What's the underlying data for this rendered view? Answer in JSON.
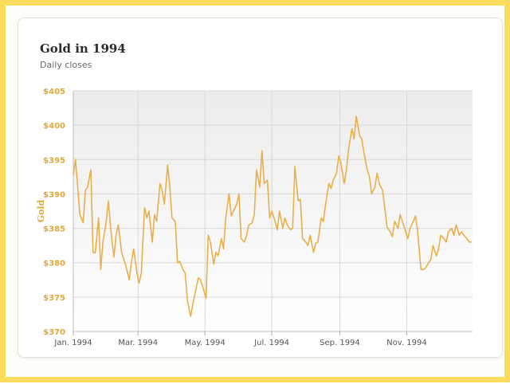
{
  "chart_data": {
    "type": "line",
    "title": "Gold in 1994",
    "subtitle": "Daily closes",
    "xlabel": "",
    "ylabel": "Gold",
    "ylim": [
      370,
      405
    ],
    "xlim": [
      "1994-01-01",
      "1994-12-31"
    ],
    "y_ticks": [
      "$370",
      "$375",
      "$380",
      "$385",
      "$390",
      "$395",
      "$400",
      "$405"
    ],
    "x_ticks": [
      {
        "date": "1994-01-01",
        "label": "Jan. 1994"
      },
      {
        "date": "1994-03-01",
        "label": "Mar. 1994"
      },
      {
        "date": "1994-05-01",
        "label": "May. 1994"
      },
      {
        "date": "1994-07-01",
        "label": "Jul. 1994"
      },
      {
        "date": "1994-09-01",
        "label": "Sep. 1994"
      },
      {
        "date": "1994-11-01",
        "label": "Nov. 1994"
      }
    ],
    "grid": true,
    "line_color": "#e9b04a",
    "series": [
      {
        "points": [
          [
            "1994-01-01",
            392.8
          ],
          [
            "1994-01-03",
            395.0
          ],
          [
            "1994-01-05",
            391.0
          ],
          [
            "1994-01-07",
            387.0
          ],
          [
            "1994-01-10",
            385.8
          ],
          [
            "1994-01-12",
            390.5
          ],
          [
            "1994-01-14",
            391.0
          ],
          [
            "1994-01-17",
            393.5
          ],
          [
            "1994-01-19",
            381.5
          ],
          [
            "1994-01-21",
            381.4
          ],
          [
            "1994-01-24",
            386.5
          ],
          [
            "1994-01-26",
            379.0
          ],
          [
            "1994-01-28",
            383.0
          ],
          [
            "1994-01-31",
            386.0
          ],
          [
            "1994-02-02",
            389.0
          ],
          [
            "1994-02-04",
            385.0
          ],
          [
            "1994-02-07",
            380.8
          ],
          [
            "1994-02-09",
            384.0
          ],
          [
            "1994-02-11",
            385.5
          ],
          [
            "1994-02-14",
            381.5
          ],
          [
            "1994-02-16",
            380.5
          ],
          [
            "1994-02-18",
            379.5
          ],
          [
            "1994-02-21",
            377.5
          ],
          [
            "1994-02-23",
            380.0
          ],
          [
            "1994-02-25",
            382.0
          ],
          [
            "1994-02-28",
            378.5
          ],
          [
            "1994-03-02",
            377.0
          ],
          [
            "1994-03-04",
            378.5
          ],
          [
            "1994-03-07",
            388.0
          ],
          [
            "1994-03-09",
            386.5
          ],
          [
            "1994-03-11",
            387.5
          ],
          [
            "1994-03-14",
            383.0
          ],
          [
            "1994-03-16",
            387.0
          ],
          [
            "1994-03-18",
            386.0
          ],
          [
            "1994-03-21",
            391.5
          ],
          [
            "1994-03-23",
            390.5
          ],
          [
            "1994-03-25",
            388.5
          ],
          [
            "1994-03-28",
            394.2
          ],
          [
            "1994-03-30",
            391.0
          ],
          [
            "1994-04-01",
            386.5
          ],
          [
            "1994-04-04",
            386.0
          ],
          [
            "1994-04-06",
            380.0
          ],
          [
            "1994-04-08",
            380.2
          ],
          [
            "1994-04-11",
            379.0
          ],
          [
            "1994-04-13",
            378.5
          ],
          [
            "1994-04-15",
            374.5
          ],
          [
            "1994-04-18",
            372.2
          ],
          [
            "1994-04-20",
            374.0
          ],
          [
            "1994-04-22",
            375.5
          ],
          [
            "1994-04-25",
            377.8
          ],
          [
            "1994-04-27",
            377.5
          ],
          [
            "1994-04-29",
            376.5
          ],
          [
            "1994-05-02",
            374.8
          ],
          [
            "1994-05-04",
            384.0
          ],
          [
            "1994-05-06",
            383.0
          ],
          [
            "1994-05-09",
            379.8
          ],
          [
            "1994-05-11",
            381.5
          ],
          [
            "1994-05-13",
            381.0
          ],
          [
            "1994-05-16",
            383.5
          ],
          [
            "1994-05-18",
            382.0
          ],
          [
            "1994-05-20",
            386.5
          ],
          [
            "1994-05-23",
            390.0
          ],
          [
            "1994-05-25",
            386.8
          ],
          [
            "1994-05-27",
            387.5
          ],
          [
            "1994-05-30",
            388.5
          ],
          [
            "1994-06-01",
            390.0
          ],
          [
            "1994-06-03",
            383.5
          ],
          [
            "1994-06-06",
            383.0
          ],
          [
            "1994-06-08",
            384.0
          ],
          [
            "1994-06-10",
            385.5
          ],
          [
            "1994-06-13",
            385.8
          ],
          [
            "1994-06-15",
            387.0
          ],
          [
            "1994-06-17",
            393.5
          ],
          [
            "1994-06-20",
            391.0
          ],
          [
            "1994-06-22",
            396.3
          ],
          [
            "1994-06-24",
            391.5
          ],
          [
            "1994-06-27",
            392.0
          ],
          [
            "1994-06-29",
            386.5
          ],
          [
            "1994-07-01",
            387.5
          ],
          [
            "1994-07-04",
            386.0
          ],
          [
            "1994-07-06",
            384.8
          ],
          [
            "1994-07-08",
            387.5
          ],
          [
            "1994-07-11",
            385.0
          ],
          [
            "1994-07-13",
            386.5
          ],
          [
            "1994-07-15",
            385.5
          ],
          [
            "1994-07-18",
            384.8
          ],
          [
            "1994-07-20",
            385.0
          ],
          [
            "1994-07-22",
            394.0
          ],
          [
            "1994-07-25",
            389.0
          ],
          [
            "1994-07-27",
            389.2
          ],
          [
            "1994-07-29",
            383.5
          ],
          [
            "1994-08-01",
            383.0
          ],
          [
            "1994-08-03",
            382.5
          ],
          [
            "1994-08-05",
            384.0
          ],
          [
            "1994-08-08",
            381.5
          ],
          [
            "1994-08-10",
            382.8
          ],
          [
            "1994-08-12",
            383.0
          ],
          [
            "1994-08-15",
            386.5
          ],
          [
            "1994-08-17",
            386.0
          ],
          [
            "1994-08-19",
            388.5
          ],
          [
            "1994-08-22",
            391.5
          ],
          [
            "1994-08-24",
            390.8
          ],
          [
            "1994-08-26",
            392.0
          ],
          [
            "1994-08-29",
            393.0
          ],
          [
            "1994-08-31",
            395.5
          ],
          [
            "1994-09-02",
            394.5
          ],
          [
            "1994-09-05",
            391.5
          ],
          [
            "1994-09-07",
            393.5
          ],
          [
            "1994-09-09",
            396.5
          ],
          [
            "1994-09-12",
            399.5
          ],
          [
            "1994-09-14",
            398.0
          ],
          [
            "1994-09-16",
            401.3
          ],
          [
            "1994-09-19",
            398.5
          ],
          [
            "1994-09-21",
            398.0
          ],
          [
            "1994-09-23",
            396.0
          ],
          [
            "1994-09-26",
            393.5
          ],
          [
            "1994-09-28",
            392.5
          ],
          [
            "1994-09-30",
            390.0
          ],
          [
            "1994-10-03",
            391.0
          ],
          [
            "1994-10-05",
            393.0
          ],
          [
            "1994-10-07",
            391.5
          ],
          [
            "1994-10-10",
            390.5
          ],
          [
            "1994-10-12",
            388.0
          ],
          [
            "1994-10-14",
            385.2
          ],
          [
            "1994-10-17",
            384.5
          ],
          [
            "1994-10-19",
            383.8
          ],
          [
            "1994-10-21",
            386.0
          ],
          [
            "1994-10-24",
            385.0
          ],
          [
            "1994-10-26",
            387.0
          ],
          [
            "1994-10-28",
            386.0
          ],
          [
            "1994-10-31",
            384.5
          ],
          [
            "1994-11-02",
            383.5
          ],
          [
            "1994-11-04",
            385.0
          ],
          [
            "1994-11-07",
            386.0
          ],
          [
            "1994-11-09",
            386.8
          ],
          [
            "1994-11-11",
            384.5
          ],
          [
            "1994-11-14",
            379.0
          ],
          [
            "1994-11-16",
            379.0
          ],
          [
            "1994-11-18",
            379.2
          ],
          [
            "1994-11-21",
            380.0
          ],
          [
            "1994-11-23",
            380.5
          ],
          [
            "1994-11-25",
            382.5
          ],
          [
            "1994-11-28",
            381.0
          ],
          [
            "1994-11-30",
            382.0
          ],
          [
            "1994-12-02",
            384.0
          ],
          [
            "1994-12-05",
            383.5
          ],
          [
            "1994-12-07",
            383.0
          ],
          [
            "1994-12-09",
            384.5
          ],
          [
            "1994-12-12",
            385.0
          ],
          [
            "1994-12-14",
            384.0
          ],
          [
            "1994-12-16",
            385.5
          ],
          [
            "1994-12-19",
            384.0
          ],
          [
            "1994-12-21",
            384.5
          ],
          [
            "1994-12-23",
            384.0
          ],
          [
            "1994-12-26",
            383.5
          ],
          [
            "1994-12-28",
            383.0
          ],
          [
            "1994-12-30",
            383.0
          ]
        ]
      }
    ]
  }
}
